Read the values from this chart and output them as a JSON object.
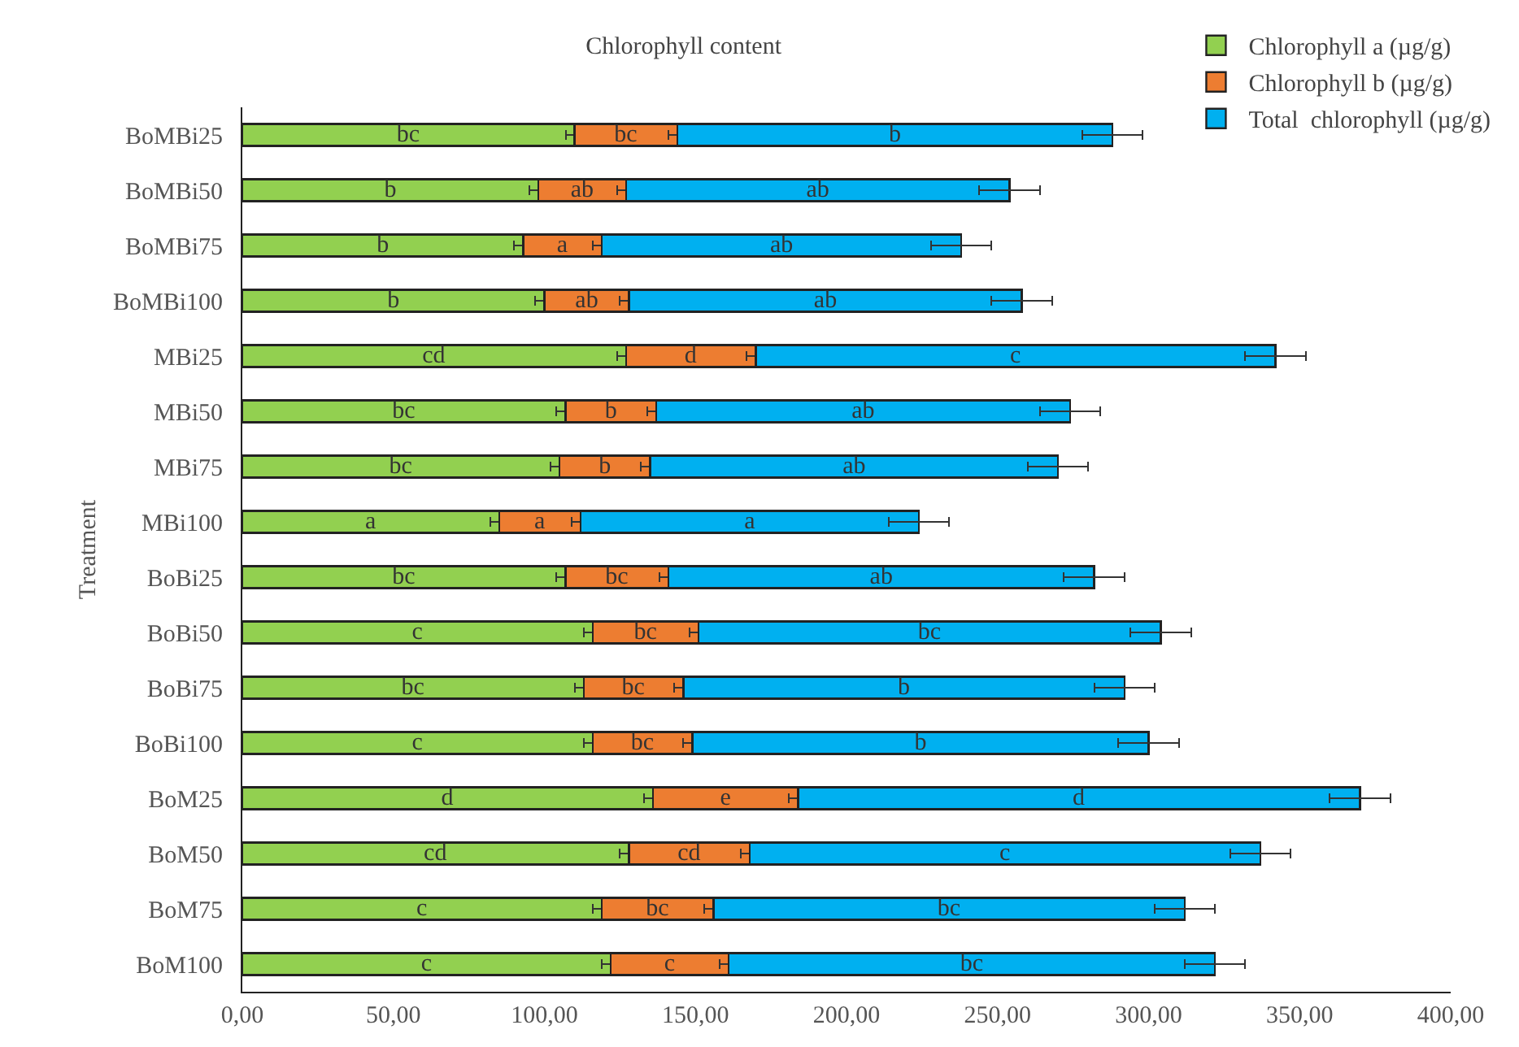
{
  "chart_data": {
    "type": "bar",
    "orientation": "horizontal",
    "stacked": true,
    "title": "Chlorophyll content",
    "ylabel": "Treatment",
    "categories": [
      "BoMBi25",
      "BoMBi50",
      "BoMBi75",
      "BoMBi100",
      "MBi25",
      "MBi50",
      "MBi75",
      "MBi100",
      "BoBi25",
      "BoBi50",
      "BoBi75",
      "BoBi100",
      "BoM25",
      "BoM50",
      "BoM75",
      "BoM100"
    ],
    "series": [
      {
        "name": "Chlorophyll a (µg/g)",
        "color": "#92d050",
        "values": [
          110,
          98,
          93,
          100,
          127,
          107,
          105,
          85,
          107,
          116,
          113,
          116,
          136,
          128,
          119,
          122
        ],
        "errors": [
          3,
          3,
          3,
          3,
          3,
          3,
          3,
          3,
          3,
          3,
          3,
          3,
          3,
          3,
          3,
          3
        ],
        "value_labels": [
          "bc",
          "b",
          "b",
          "b",
          "cd",
          "bc",
          "bc",
          "a",
          "bc",
          "c",
          "bc",
          "c",
          "d",
          "cd",
          "c",
          "c"
        ]
      },
      {
        "name": "Chlorophyll b (µg/g)",
        "color": "#ed7d31",
        "values": [
          34,
          29,
          26,
          28,
          43,
          30,
          30,
          27,
          34,
          35,
          33,
          33,
          48,
          40,
          37,
          39
        ],
        "errors": [
          3,
          3,
          3,
          3,
          3,
          3,
          3,
          3,
          3,
          3,
          3,
          3,
          3,
          3,
          3,
          3
        ],
        "value_labels": [
          "bc",
          "ab",
          "a",
          "ab",
          "d",
          "b",
          "b",
          "a",
          "bc",
          "bc",
          "bc",
          "bc",
          "e",
          "cd",
          "bc",
          "c"
        ]
      },
      {
        "name": "Total  chlorophyll (µg/g)",
        "color": "#00b0f0",
        "values": [
          144,
          127,
          119,
          130,
          172,
          137,
          135,
          112,
          141,
          153,
          146,
          151,
          186,
          169,
          156,
          161
        ],
        "errors": [
          10,
          10,
          10,
          10,
          10,
          10,
          10,
          10,
          10,
          10,
          10,
          10,
          10,
          10,
          10,
          10
        ],
        "value_labels": [
          "b",
          "ab",
          "ab",
          "ab",
          "c",
          "ab",
          "ab",
          "a",
          "ab",
          "bc",
          "b",
          "b",
          "d",
          "c",
          "bc",
          "bc"
        ]
      }
    ],
    "xlim": [
      0,
      400
    ],
    "xticks": [
      {
        "value": 0,
        "label": "0,00"
      },
      {
        "value": 50,
        "label": "50,00"
      },
      {
        "value": 100,
        "label": "100,00"
      },
      {
        "value": 150,
        "label": "150,00"
      },
      {
        "value": 200,
        "label": "200,00"
      },
      {
        "value": 250,
        "label": "250,00"
      },
      {
        "value": 300,
        "label": "300,00"
      },
      {
        "value": 350,
        "label": "350,00"
      },
      {
        "value": 400,
        "label": "400,00"
      }
    ],
    "grid": false,
    "legend": "top right"
  }
}
